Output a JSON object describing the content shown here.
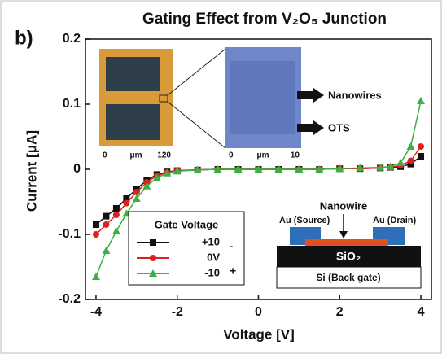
{
  "chart_data": {
    "type": "line",
    "title": "Gating Effect from V₂O₅ Junction",
    "panel_label": "b)",
    "xlabel": "Voltage [V]",
    "ylabel": "Current [μA]",
    "x": [
      -4,
      -3.75,
      -3.5,
      -3.25,
      -3,
      -2.75,
      -2.5,
      -2.25,
      -2,
      -1.5,
      -1,
      -0.5,
      0,
      0.5,
      1,
      1.5,
      2,
      2.5,
      3,
      3.25,
      3.5,
      3.75,
      4
    ],
    "series": [
      {
        "name": "+10",
        "color": "#111111",
        "marker": "square",
        "values": [
          -0.085,
          -0.072,
          -0.06,
          -0.045,
          -0.03,
          -0.017,
          -0.008,
          -0.004,
          -0.002,
          -0.001,
          0,
          0,
          0,
          0,
          0,
          0,
          0.001,
          0.001,
          0.002,
          0.003,
          0.004,
          0.008,
          0.02
        ]
      },
      {
        "name": "0V",
        "color": "#e02020",
        "marker": "circle",
        "values": [
          -0.1,
          -0.085,
          -0.07,
          -0.052,
          -0.035,
          -0.02,
          -0.01,
          -0.005,
          -0.002,
          -0.001,
          0,
          0,
          0,
          0,
          0,
          0,
          0.001,
          0.001,
          0.002,
          0.003,
          0.006,
          0.013,
          0.035
        ]
      },
      {
        "name": "-10",
        "color": "#3cb043",
        "marker": "triangle",
        "values": [
          -0.165,
          -0.125,
          -0.095,
          -0.068,
          -0.045,
          -0.026,
          -0.013,
          -0.006,
          -0.003,
          -0.001,
          0,
          0,
          0,
          0,
          0,
          0,
          0.001,
          0.002,
          0.003,
          0.004,
          0.01,
          0.035,
          0.105
        ]
      }
    ],
    "legend_title": "Gate Voltage",
    "legend_signs": [
      "-",
      "+"
    ],
    "xlim": [
      -4.26,
      4.26
    ],
    "xticks": [
      -4,
      -2,
      0,
      2,
      4
    ],
    "ylim": [
      -0.2,
      0.2
    ],
    "yticks": [
      -0.2,
      -0.1,
      0,
      0.1,
      0.2
    ]
  },
  "inset_images": {
    "left_scale": [
      "0",
      "μm",
      "120"
    ],
    "right_scale": [
      "0",
      "μm",
      "10"
    ],
    "labels": [
      "Nanowires",
      "OTS"
    ]
  },
  "schematic": {
    "nanowire": "Nanowire",
    "source": "Au (Source)",
    "drain": "Au (Drain)",
    "oxide": "SiO₂",
    "substrate": "Si (Back gate)"
  }
}
